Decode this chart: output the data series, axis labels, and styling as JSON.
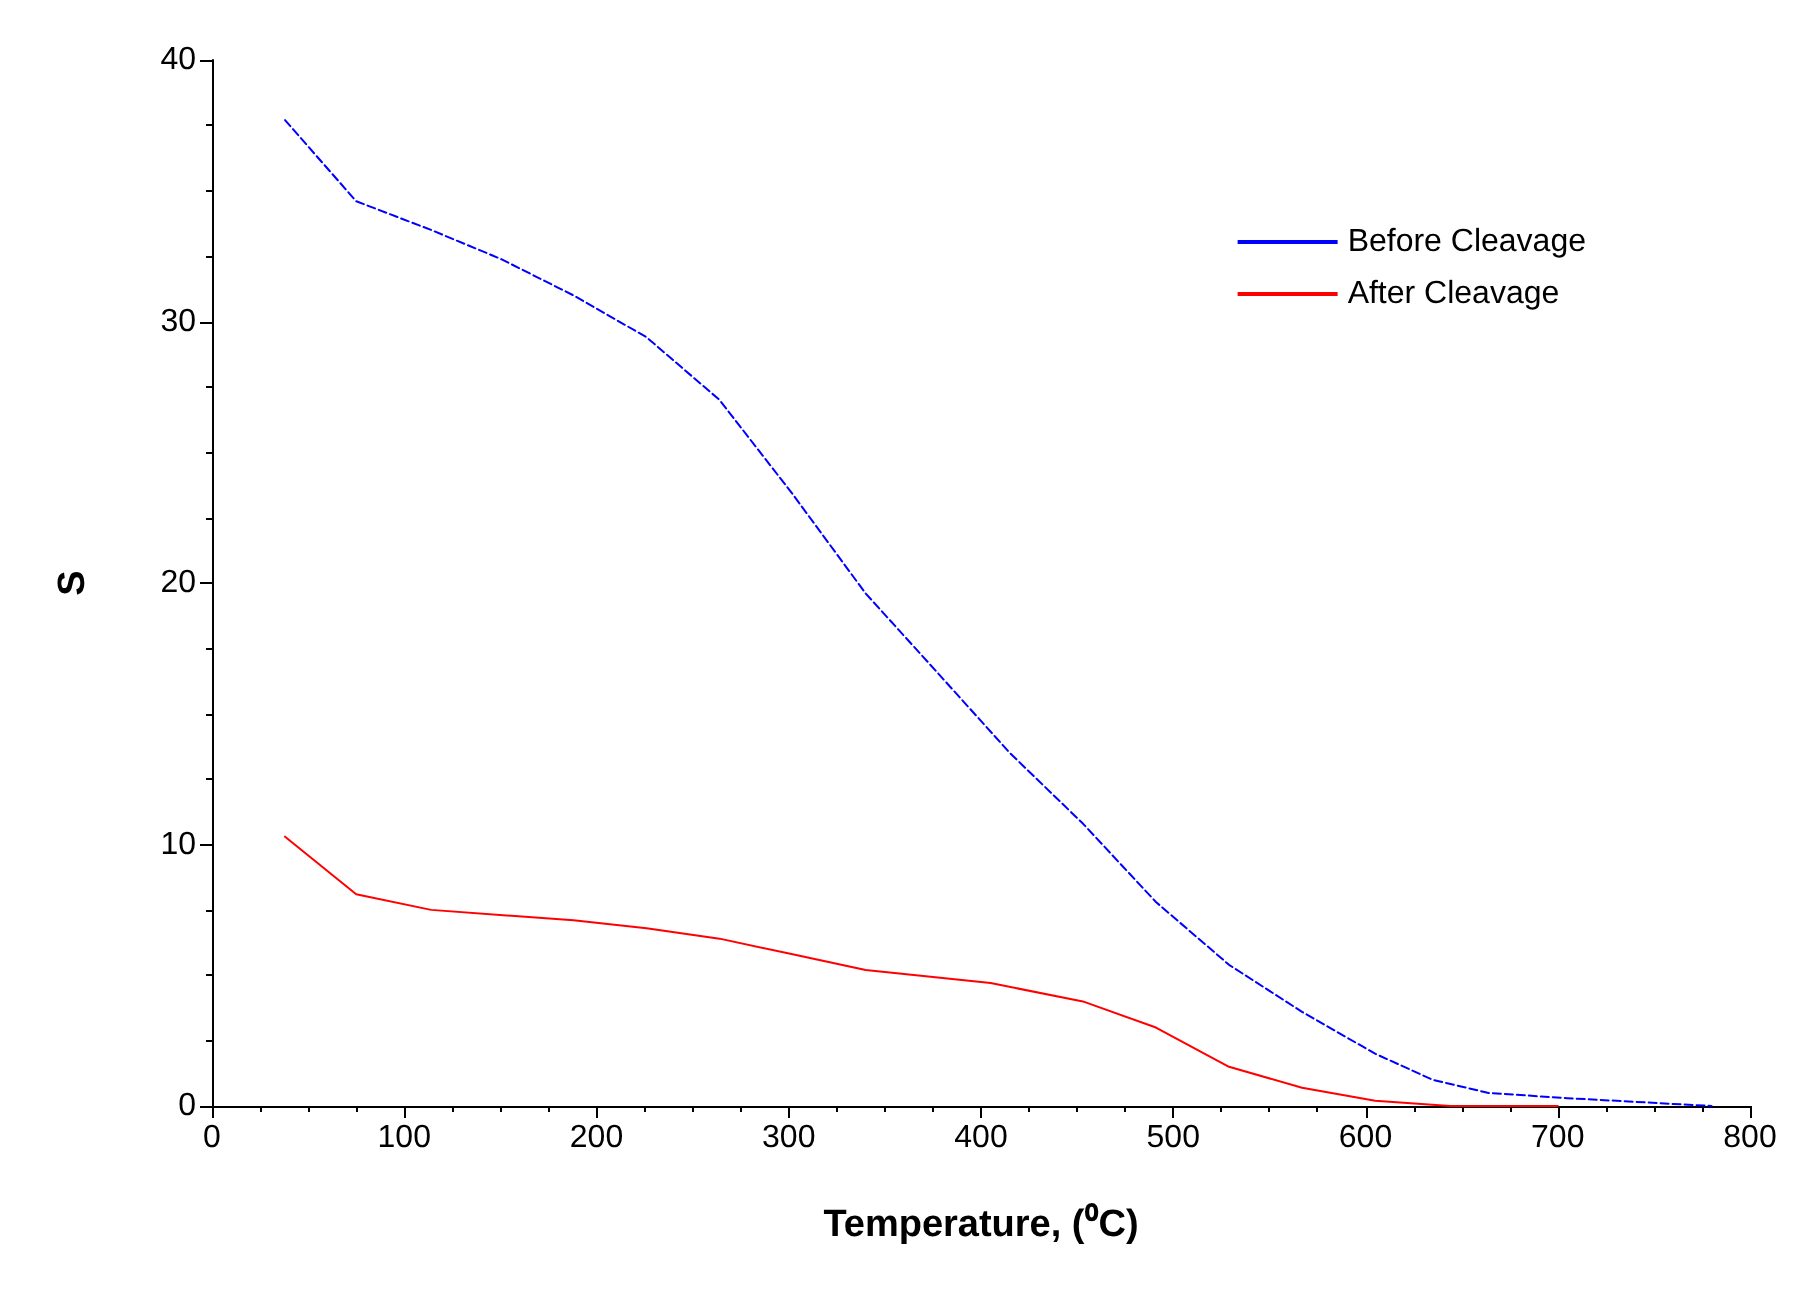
{
  "chart_data": {
    "type": "line",
    "xlabel": "Temperature, (⁰C)",
    "ylabel": "S",
    "xlim": [
      0,
      800
    ],
    "xticks": [
      0,
      100,
      200,
      300,
      400,
      500,
      600,
      700,
      800
    ],
    "ylim": [
      0,
      40
    ],
    "yticks": [
      0,
      10,
      20,
      30,
      40
    ],
    "grid": false,
    "legend": "top right",
    "marker": "none",
    "series": [
      {
        "name": "Before Cleavage",
        "color": "#0000ff",
        "line_style": "dashed",
        "x": [
          38,
          75,
          114,
          150,
          188,
          226,
          264,
          302,
          340,
          377,
          415,
          453,
          491,
          529,
          567,
          605,
          635,
          664,
          705,
          780
        ],
        "values": [
          37.7,
          34.6,
          33.5,
          32.4,
          31,
          29.4,
          27,
          23.4,
          19.6,
          16.6,
          13.5,
          10.8,
          7.8,
          5.4,
          3.6,
          2,
          1,
          0.5,
          0.3,
          0
        ]
      },
      {
        "name": "After Cleavage",
        "color": "#ff0000",
        "line_style": "solid",
        "x": [
          38,
          75,
          114,
          188,
          226,
          264,
          302,
          340,
          405,
          453,
          491,
          529,
          567,
          605,
          644,
          700
        ],
        "values": [
          10.3,
          8.1,
          7.5,
          7.1,
          6.8,
          6.4,
          5.8,
          5.2,
          4.7,
          4.0,
          3.0,
          1.5,
          0.7,
          0.2,
          0,
          0
        ]
      }
    ]
  }
}
